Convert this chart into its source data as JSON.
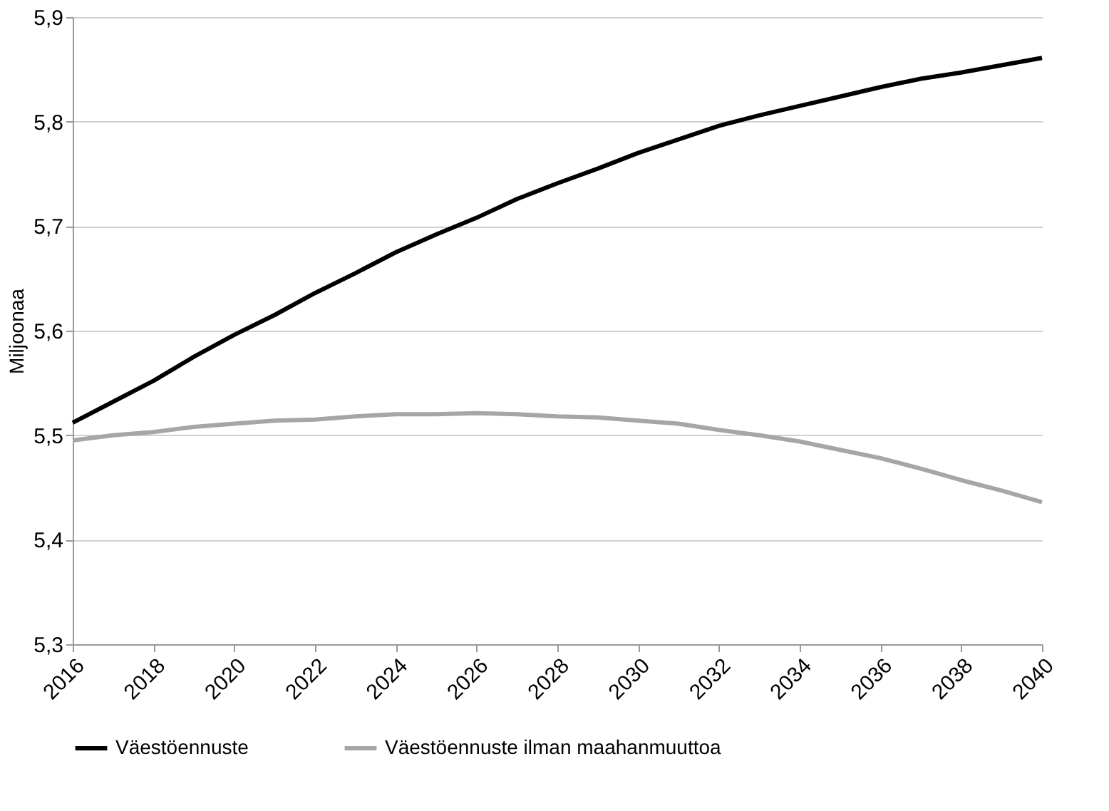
{
  "chart_data": {
    "type": "line",
    "ylabel": "Miljoonaa",
    "x": [
      2016,
      2017,
      2018,
      2019,
      2020,
      2021,
      2022,
      2023,
      2024,
      2025,
      2026,
      2027,
      2028,
      2029,
      2030,
      2031,
      2032,
      2033,
      2034,
      2035,
      2036,
      2037,
      2038,
      2039,
      2040
    ],
    "series": [
      {
        "name": "Väestöennuste",
        "color": "#000000",
        "values": [
          5.512,
          5.532,
          5.552,
          5.575,
          5.596,
          5.615,
          5.636,
          5.655,
          5.675,
          5.692,
          5.708,
          5.726,
          5.741,
          5.755,
          5.77,
          5.783,
          5.796,
          5.806,
          5.815,
          5.824,
          5.833,
          5.841,
          5.847,
          5.854,
          5.861
        ]
      },
      {
        "name": "Väestöennuste ilman maahanmuuttoa",
        "color": "#a6a6a6",
        "values": [
          5.495,
          5.5,
          5.503,
          5.508,
          5.511,
          5.514,
          5.515,
          5.518,
          5.52,
          5.52,
          5.521,
          5.52,
          5.518,
          5.517,
          5.514,
          5.511,
          5.505,
          5.5,
          5.494,
          5.486,
          5.478,
          5.468,
          5.457,
          5.447,
          5.436
        ]
      }
    ],
    "xlim": [
      2016,
      2040
    ],
    "xticks": [
      2016,
      2018,
      2020,
      2022,
      2024,
      2026,
      2028,
      2030,
      2032,
      2034,
      2036,
      2038,
      2040
    ],
    "ylim": [
      5.3,
      5.9
    ],
    "yticks": [
      {
        "value": 5.3,
        "label": "5,3"
      },
      {
        "value": 5.4,
        "label": "5,4"
      },
      {
        "value": 5.5,
        "label": "5,5"
      },
      {
        "value": 5.6,
        "label": "5,6"
      },
      {
        "value": 5.7,
        "label": "5,7"
      },
      {
        "value": 5.8,
        "label": "5,8"
      },
      {
        "value": 5.9,
        "label": "5,9"
      }
    ],
    "grid": "y",
    "legend": "bottom",
    "marker": "none",
    "line_style": "solid"
  }
}
